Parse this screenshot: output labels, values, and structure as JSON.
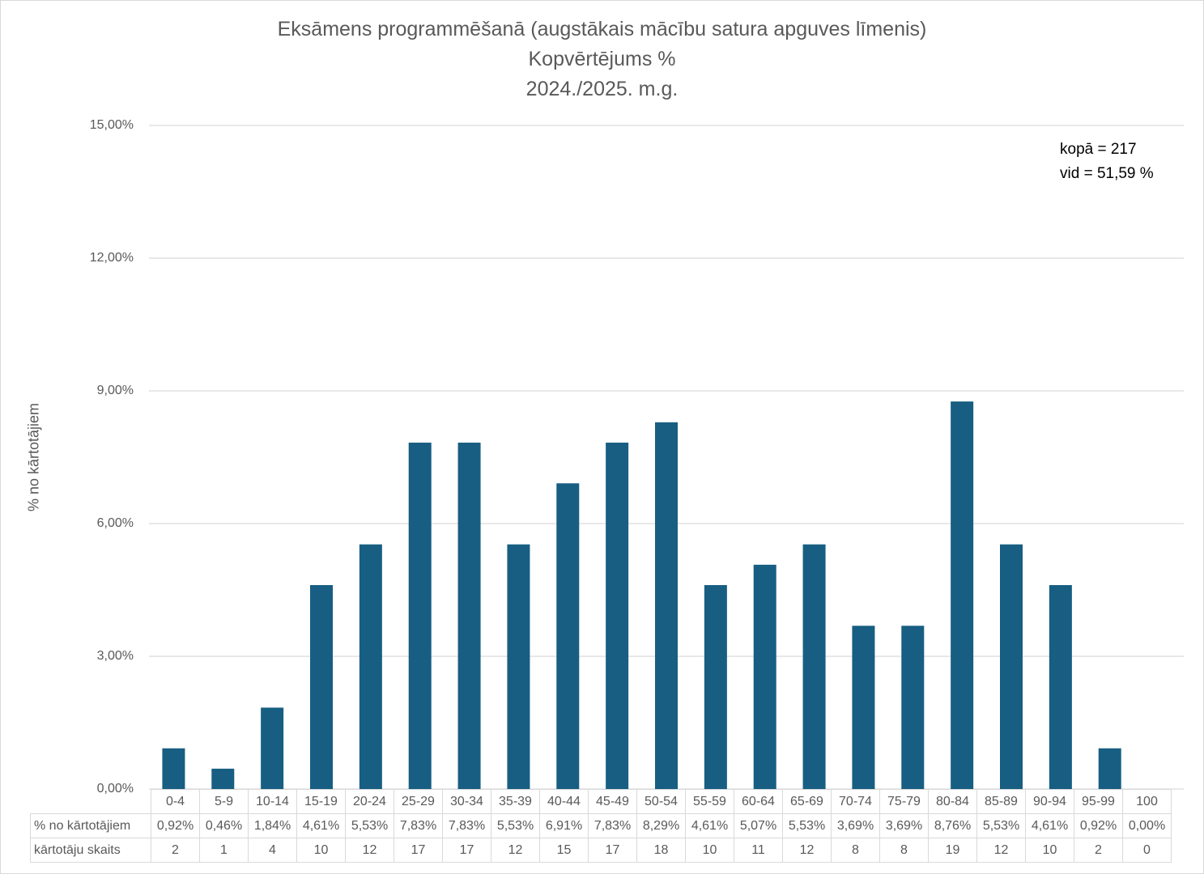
{
  "chart_data": {
    "type": "bar",
    "title": [
      "Eksāmens programmēšanā (augstākais mācību satura apguves līmenis)",
      "Kopvērtējums %",
      "2024./2025. m.g."
    ],
    "ylabel": "% no kārtotājiem",
    "ylim": [
      0,
      15
    ],
    "yticks": [
      "0,00%",
      "3,00%",
      "6,00%",
      "9,00%",
      "12,00%",
      "15,00%"
    ],
    "ytick_values": [
      0,
      3,
      6,
      9,
      12,
      15
    ],
    "grid": true,
    "bar_color": "#175E82",
    "categories": [
      "0-4",
      "5-9",
      "10-14",
      "15-19",
      "20-24",
      "25-29",
      "30-34",
      "35-39",
      "40-44",
      "45-49",
      "50-54",
      "55-59",
      "60-64",
      "65-69",
      "70-74",
      "75-79",
      "80-84",
      "85-89",
      "90-94",
      "95-99",
      "100"
    ],
    "values": [
      0.92,
      0.46,
      1.84,
      4.61,
      5.53,
      7.83,
      7.83,
      5.53,
      6.91,
      7.83,
      8.29,
      4.61,
      5.07,
      5.53,
      3.69,
      3.69,
      8.76,
      5.53,
      4.61,
      0.92,
      0.0
    ],
    "annotations": [
      "kopā = 217",
      "vid = 51,59 %"
    ],
    "table": {
      "row_labels": [
        "% no kārtotājiem",
        "kārtotāju skaits"
      ],
      "percent_row": [
        "0,92%",
        "0,46%",
        "1,84%",
        "4,61%",
        "5,53%",
        "7,83%",
        "7,83%",
        "5,53%",
        "6,91%",
        "7,83%",
        "8,29%",
        "4,61%",
        "5,07%",
        "5,53%",
        "3,69%",
        "3,69%",
        "8,76%",
        "5,53%",
        "4,61%",
        "0,92%",
        "0,00%"
      ],
      "count_row": [
        "2",
        "1",
        "4",
        "10",
        "12",
        "17",
        "17",
        "12",
        "15",
        "17",
        "18",
        "10",
        "11",
        "12",
        "8",
        "8",
        "19",
        "12",
        "10",
        "2",
        "0"
      ]
    }
  }
}
